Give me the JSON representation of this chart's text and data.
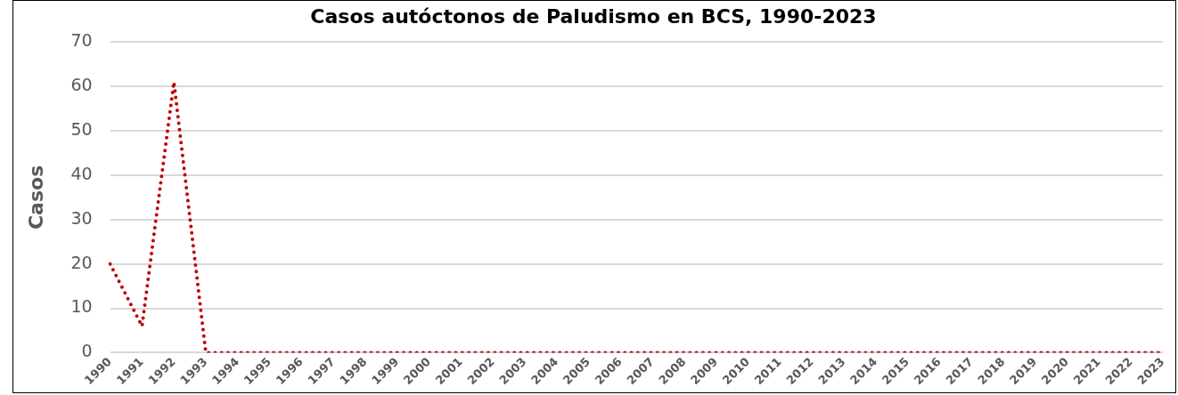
{
  "chart_data": {
    "type": "line",
    "title": "Casos autóctonos de Paludismo en BCS, 1990-2023",
    "ylabel": "Casos",
    "categories": [
      "1990",
      "1991",
      "1992",
      "1993",
      "1994",
      "1995",
      "1996",
      "1997",
      "1998",
      "1999",
      "2000",
      "2001",
      "2002",
      "2003",
      "2004",
      "2005",
      "2006",
      "2007",
      "2008",
      "2009",
      "2010",
      "2011",
      "2012",
      "2013",
      "2014",
      "2015",
      "2016",
      "2017",
      "2018",
      "2019",
      "2020",
      "2021",
      "2022",
      "2023"
    ],
    "series": [
      {
        "color": "#c00000",
        "values": [
          20,
          6,
          61,
          0,
          0,
          0,
          0,
          0,
          0,
          0,
          0,
          0,
          0,
          0,
          0,
          0,
          0,
          0,
          0,
          0,
          0,
          0,
          0,
          0,
          0,
          0,
          0,
          0,
          0,
          0,
          0,
          0,
          0,
          0
        ]
      }
    ],
    "ylim": [
      0,
      70
    ],
    "yticks": [
      0,
      10,
      20,
      30,
      40,
      50,
      60,
      70
    ],
    "grid": "y",
    "legend": false,
    "marker": "none",
    "line_style": "dotted"
  }
}
